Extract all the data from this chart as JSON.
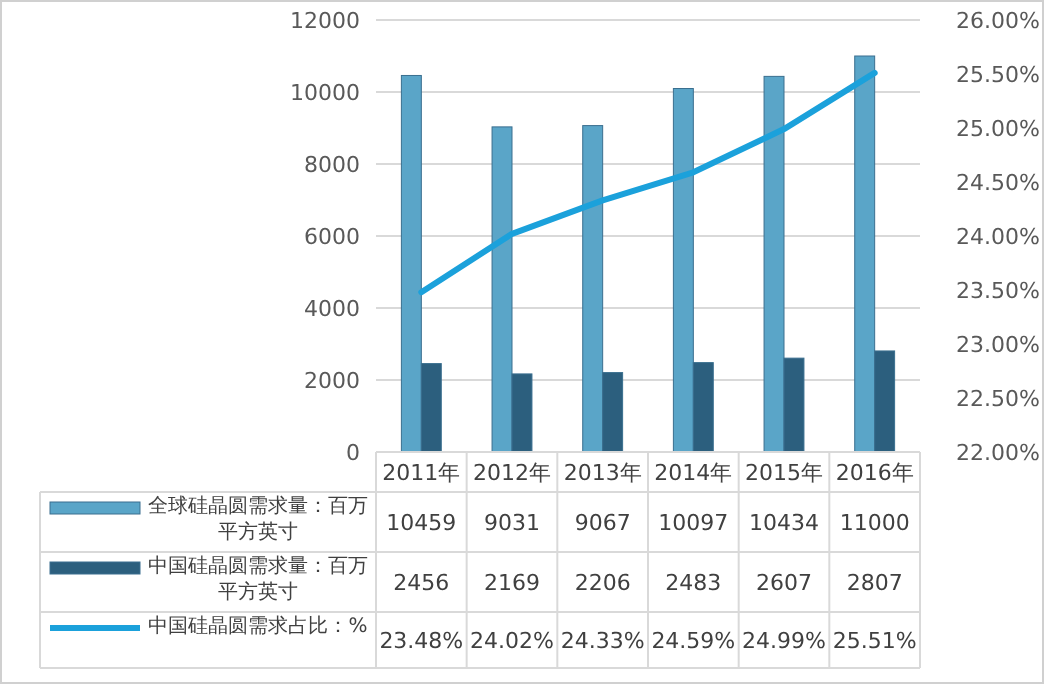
{
  "chart_data": {
    "type": "bar",
    "categories": [
      "2011年",
      "2012年",
      "2013年",
      "2014年",
      "2015年",
      "2016年"
    ],
    "series": [
      {
        "name": "全球硅晶圆需求量：百万平方英寸",
        "color": "#5aa5c8",
        "values": [
          10459,
          9031,
          9067,
          10097,
          10434,
          11000
        ],
        "value_labels": [
          "10459",
          "9031",
          "9067",
          "10097",
          "10434",
          "11000"
        ]
      },
      {
        "name": "中国硅晶圆需求量：百万平方英寸",
        "color": "#2c5f7e",
        "values": [
          2456,
          2169,
          2206,
          2483,
          2607,
          2807
        ],
        "value_labels": [
          "2456",
          "2169",
          "2206",
          "2483",
          "2607",
          "2807"
        ]
      },
      {
        "name": "中国硅晶圆需求占比：%",
        "type": "line",
        "axis": "y2",
        "color": "#1ba1db",
        "values": [
          23.48,
          24.02,
          24.33,
          24.59,
          24.99,
          25.51
        ],
        "value_labels": [
          "23.48%",
          "24.02%",
          "24.33%",
          "24.59%",
          "24.99%",
          "25.51%"
        ]
      }
    ],
    "ylim": [
      0,
      12000
    ],
    "yticks": [
      0,
      2000,
      4000,
      6000,
      8000,
      10000,
      12000
    ],
    "y2lim": [
      22,
      26
    ],
    "y2ticks": [
      {
        "value": 22,
        "label": "22.00%"
      },
      {
        "value": 22.5,
        "label": "22.50%"
      },
      {
        "value": 23,
        "label": "23.00%"
      },
      {
        "value": 23.5,
        "label": "23.50%"
      },
      {
        "value": 24,
        "label": "24.00%"
      },
      {
        "value": 24.5,
        "label": "24.50%"
      },
      {
        "value": 25,
        "label": "25.00%"
      },
      {
        "value": 25.5,
        "label": "25.50%"
      },
      {
        "value": 26,
        "label": "26.00%"
      }
    ],
    "grid": "y",
    "legend": "bottom",
    "marker": "none",
    "line_style": "solid"
  }
}
